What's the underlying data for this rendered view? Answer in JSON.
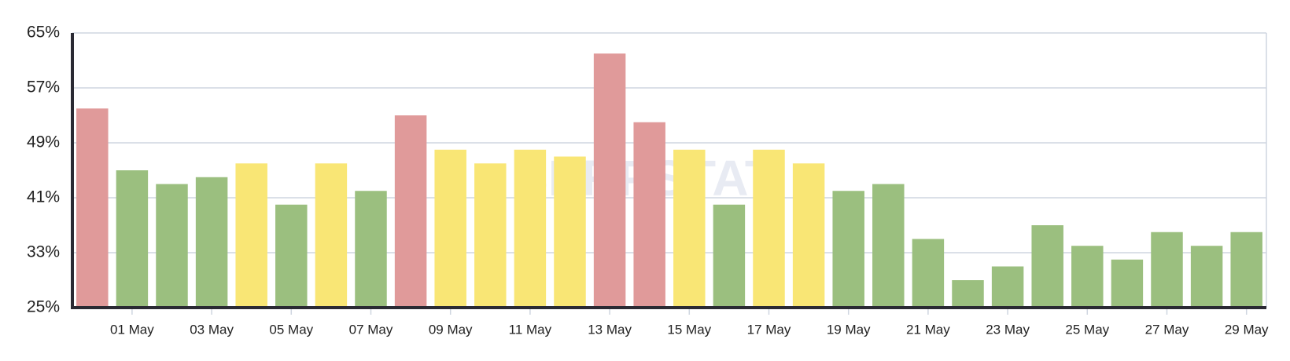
{
  "chart_data": {
    "type": "bar",
    "watermark": "SERPSTAT",
    "categories": [
      null,
      "01 May",
      null,
      "03 May",
      null,
      "05 May",
      null,
      "07 May",
      null,
      "09 May",
      null,
      "11 May",
      null,
      "13 May",
      null,
      "15 May",
      null,
      "17 May",
      null,
      "19 May",
      null,
      "21 May",
      null,
      "23 May",
      null,
      "25 May",
      null,
      "27 May",
      null,
      "29 May"
    ],
    "values": [
      54,
      45,
      43,
      44,
      46,
      40,
      46,
      42,
      53,
      48,
      46,
      48,
      47,
      62,
      52,
      48,
      40,
      48,
      46,
      42,
      43,
      35,
      29,
      31,
      37,
      34,
      32,
      36,
      34,
      36
    ],
    "colors": [
      "#e09a9a",
      "#9bbf7f",
      "#9bbf7f",
      "#9bbf7f",
      "#f9e675",
      "#9bbf7f",
      "#f9e675",
      "#9bbf7f",
      "#e09a9a",
      "#f9e675",
      "#f9e675",
      "#f9e675",
      "#f9e675",
      "#e09a9a",
      "#e09a9a",
      "#f9e675",
      "#9bbf7f",
      "#f9e675",
      "#f9e675",
      "#9bbf7f",
      "#9bbf7f",
      "#9bbf7f",
      "#9bbf7f",
      "#9bbf7f",
      "#9bbf7f",
      "#9bbf7f",
      "#9bbf7f",
      "#9bbf7f",
      "#9bbf7f",
      "#9bbf7f"
    ],
    "ylim": [
      25,
      65
    ],
    "yticks": [
      {
        "value": 25,
        "label": "25%"
      },
      {
        "value": 33,
        "label": "33%"
      },
      {
        "value": 41,
        "label": "41%"
      },
      {
        "value": 49,
        "label": "49%"
      },
      {
        "value": 57,
        "label": "57%"
      },
      {
        "value": 65,
        "label": "65%"
      }
    ],
    "grid": true
  }
}
